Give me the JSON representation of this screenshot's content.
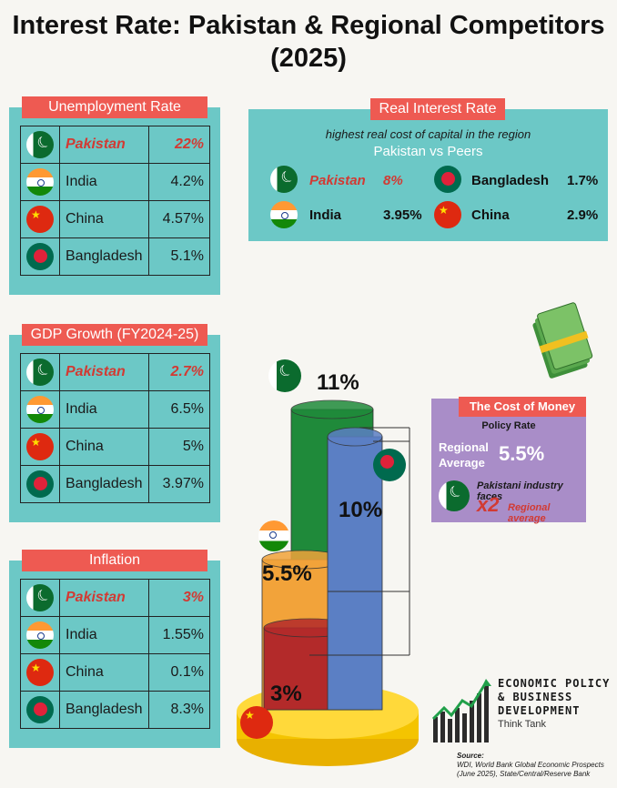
{
  "title": "Interest Rate: Pakistan & Regional Competitors (2025)",
  "unemployment": {
    "title": "Unemployment Rate",
    "rows": [
      {
        "name": "Pakistan",
        "value": "22%"
      },
      {
        "name": "India",
        "value": "4.2%"
      },
      {
        "name": "China",
        "value": "4.57%"
      },
      {
        "name": "Bangladesh",
        "value": "5.1%"
      }
    ]
  },
  "real_interest": {
    "title": "Real Interest Rate",
    "subtitle": "highest real cost of capital in the region",
    "sub2": "Pakistan vs Peers",
    "rows": [
      {
        "name": "Pakistan",
        "value": "8%"
      },
      {
        "name": "Bangladesh",
        "value": "1.7%"
      },
      {
        "name": "India",
        "value": "3.95%"
      },
      {
        "name": "China",
        "value": "2.9%"
      }
    ]
  },
  "gdp": {
    "title": "GDP Growth (FY2024-25)",
    "rows": [
      {
        "name": "Pakistan",
        "value": "2.7%"
      },
      {
        "name": "India",
        "value": "6.5%"
      },
      {
        "name": "China",
        "value": "5%"
      },
      {
        "name": "Bangladesh",
        "value": "3.97%"
      }
    ]
  },
  "inflation": {
    "title": "Inflation",
    "rows": [
      {
        "name": "Pakistan",
        "value": "3%"
      },
      {
        "name": "India",
        "value": "1.55%"
      },
      {
        "name": "China",
        "value": "0.1%"
      },
      {
        "name": "Bangladesh",
        "value": "8.3%"
      }
    ]
  },
  "cost": {
    "title": "The Cost of Money",
    "policy": "Policy Rate",
    "regional_label_1": "Regional",
    "regional_label_2": "Average",
    "regional_value": "5.5%",
    "faces": "Pakistani industry faces",
    "mult": "x2",
    "mult_text": "Regional average"
  },
  "chart_data": {
    "type": "bar",
    "title": "Policy Rate",
    "categories": [
      "Pakistan",
      "Bangladesh",
      "India",
      "China"
    ],
    "values": [
      11,
      10,
      5.5,
      3
    ],
    "labels": [
      "11%",
      "10%",
      "5.5%",
      "3%"
    ],
    "colors": [
      "#1f8a3a",
      "#5b7fc4",
      "#f2a33a",
      "#b32a2a"
    ]
  },
  "logo": {
    "line1": "ECONOMIC POLICY",
    "line2": "& BUSINESS",
    "line3": "DEVELOPMENT",
    "line4": "Think Tank"
  },
  "source": {
    "label": "Source:",
    "line1": "WDI, World Bank Global Economic Prospects",
    "line2": "(June 2025), State/Central/Reserve Bank"
  }
}
